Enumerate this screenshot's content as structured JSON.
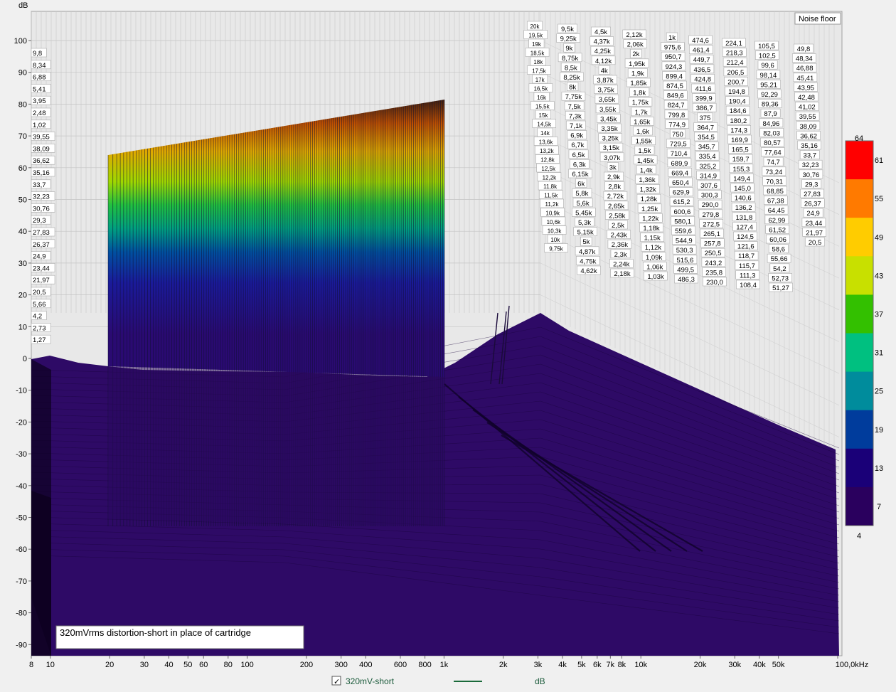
{
  "chart_data": {
    "type": "waterfall",
    "y_axis": {
      "unit": "dB",
      "range": [
        -95,
        105
      ],
      "ticks": [
        "100",
        "90",
        "80",
        "70",
        "60",
        "50",
        "40",
        "30",
        "20",
        "10",
        "0",
        "-10",
        "-20",
        "-30",
        "-40",
        "-50",
        "-60",
        "-70",
        "-80",
        "-90"
      ]
    },
    "x_axis": {
      "scale": "log",
      "range_hz": [
        8,
        100000
      ],
      "ticks": [
        {
          "label": "8",
          "hz": 8
        },
        {
          "label": "10",
          "hz": 10
        },
        {
          "label": "20",
          "hz": 20
        },
        {
          "label": "30",
          "hz": 30
        },
        {
          "label": "40",
          "hz": 40
        },
        {
          "label": "50",
          "hz": 50
        },
        {
          "label": "60",
          "hz": 60
        },
        {
          "label": "80",
          "hz": 80
        },
        {
          "label": "100",
          "hz": 100
        },
        {
          "label": "200",
          "hz": 200
        },
        {
          "label": "300",
          "hz": 300
        },
        {
          "label": "400",
          "hz": 400
        },
        {
          "label": "600",
          "hz": 600
        },
        {
          "label": "800",
          "hz": 800
        },
        {
          "label": "1k",
          "hz": 1000
        },
        {
          "label": "2k",
          "hz": 2000
        },
        {
          "label": "3k",
          "hz": 3000
        },
        {
          "label": "4k",
          "hz": 4000
        },
        {
          "label": "5k",
          "hz": 5000
        },
        {
          "label": "6k",
          "hz": 6000
        },
        {
          "label": "7k",
          "hz": 7000
        },
        {
          "label": "8k",
          "hz": 8000
        },
        {
          "label": "10k",
          "hz": 10000
        },
        {
          "label": "20k",
          "hz": 20000
        },
        {
          "label": "30k",
          "hz": 30000
        },
        {
          "label": "40k",
          "hz": 40000
        },
        {
          "label": "50k",
          "hz": 50000
        },
        {
          "label": "100,0kHz",
          "hz": 100000
        }
      ]
    },
    "noise_floor_label": "Noise floor",
    "annotation": "320mVrms distortion-short in place of cartridge",
    "colorbar": {
      "ticks": [
        "64",
        "61",
        "55",
        "49",
        "43",
        "37",
        "31",
        "25",
        "19",
        "13",
        "7",
        "4"
      ],
      "colors": [
        "#ff0000",
        "#ff7a00",
        "#ffcc00",
        "#c8e000",
        "#33c000",
        "#00c080",
        "#008c9c",
        "#003c9c",
        "#1a0078",
        "#2a005e"
      ]
    },
    "legend": {
      "series_name": "320mV-short",
      "unit": "dB",
      "checked": true,
      "line_color": "#1a6a3a"
    },
    "burst": {
      "start_hz": 20,
      "end_hz": 1000,
      "peak_db_start": 64,
      "peak_db_end": 82
    },
    "marker_columns": [
      [
        "20k",
        "19,5k",
        "19k",
        "18,5k",
        "18k",
        "17,5k",
        "17k",
        "16,5k",
        "16k",
        "15,5k",
        "15k",
        "14,5k",
        "14k",
        "13,6k",
        "13,2k",
        "12,8k",
        "12,5k",
        "12,2k",
        "11,8k",
        "11,5k",
        "11,2k",
        "10,9k",
        "10,6k",
        "10,3k",
        "10k",
        "9,75k"
      ],
      [
        "9,5k",
        "9,25k",
        "9k",
        "8,75k",
        "8,5k",
        "8,25k",
        "8k",
        "7,75k",
        "7,5k",
        "7,3k",
        "7,1k",
        "6,9k",
        "6,7k",
        "6,5k",
        "6,3k",
        "6,15k",
        "6k",
        "5,8k",
        "5,6k",
        "5,45k",
        "5,3k",
        "5,15k",
        "5k",
        "4,87k",
        "4,75k",
        "4,62k"
      ],
      [
        "4,5k",
        "4,37k",
        "4,25k",
        "4,12k",
        "4k",
        "3,87k",
        "3,75k",
        "3,65k",
        "3,55k",
        "3,45k",
        "3,35k",
        "3,25k",
        "3,15k",
        "3,07k",
        "3k",
        "2,9k",
        "2,8k",
        "2,72k",
        "2,65k",
        "2,58k",
        "2,5k",
        "2,43k",
        "2,36k",
        "2,3k",
        "2,24k",
        "2,18k"
      ],
      [
        "2,12k",
        "2,06k",
        "2k",
        "1,95k",
        "1,9k",
        "1,85k",
        "1,8k",
        "1,75k",
        "1,7k",
        "1,65k",
        "1,6k",
        "1,55k",
        "1,5k",
        "1,45k",
        "1,4k",
        "1,36k",
        "1,32k",
        "1,28k",
        "1,25k",
        "1,22k",
        "1,18k",
        "1,15k",
        "1,12k",
        "1,09k",
        "1,06k",
        "1,03k"
      ],
      [
        "1k",
        "975,6",
        "950,7",
        "924,3",
        "899,4",
        "874,5",
        "849,6",
        "824,7",
        "799,8",
        "774,9",
        "750",
        "729,5",
        "710,4",
        "689,9",
        "669,4",
        "650,4",
        "629,9",
        "615,2",
        "600,6",
        "580,1",
        "559,6",
        "544,9",
        "530,3",
        "515,6",
        "499,5",
        "486,3"
      ],
      [
        "474,6",
        "461,4",
        "449,7",
        "436,5",
        "424,8",
        "411,6",
        "399,9",
        "386,7",
        "375",
        "364,7",
        "354,5",
        "345,7",
        "335,4",
        "325,2",
        "314,9",
        "307,6",
        "300,3",
        "290,0",
        "279,8",
        "272,5",
        "265,1",
        "257,8",
        "250,5",
        "243,2",
        "235,8",
        "230,0"
      ],
      [
        "224,1",
        "218,3",
        "212,4",
        "206,5",
        "200,7",
        "194,8",
        "190,4",
        "184,6",
        "180,2",
        "174,3",
        "169,9",
        "165,5",
        "159,7",
        "155,3",
        "149,4",
        "145,0",
        "140,6",
        "136,2",
        "131,8",
        "127,4",
        "124,5",
        "121,6",
        "118,7",
        "115,7",
        "111,3",
        "108,4"
      ],
      [
        "105,5",
        "102,5",
        "99,6",
        "98,14",
        "95,21",
        "92,29",
        "89,36",
        "87,9",
        "84,96",
        "82,03",
        "80,57",
        "77,64",
        "74,7",
        "73,24",
        "70,31",
        "68,85",
        "67,38",
        "64,45",
        "62,99",
        "61,52",
        "60,06",
        "58,6",
        "55,66",
        "54,2",
        "52,73",
        "51,27"
      ],
      [
        "49,8",
        "48,34",
        "46,88",
        "45,41",
        "43,95",
        "42,48",
        "41,02",
        "39,55",
        "38,09",
        "36,62",
        "35,16",
        "33,7",
        "32,23",
        "30,76",
        "29,3",
        "27,83",
        "26,37",
        "24,9",
        "23,44",
        "21,97",
        "20,5"
      ]
    ],
    "left_markers": [
      "9,8",
      "8,34",
      "6,88",
      "5,41",
      "3,95",
      "2,48",
      "1,02",
      "39,55",
      "38,09",
      "36,62",
      "35,16",
      "33,7",
      "32,23",
      "30,76",
      "29,3",
      "27,83",
      "26,37",
      "24,9",
      "23,44",
      "21,97",
      "20,5",
      "5,66",
      "4,2",
      "2,73",
      "1,27"
    ]
  }
}
